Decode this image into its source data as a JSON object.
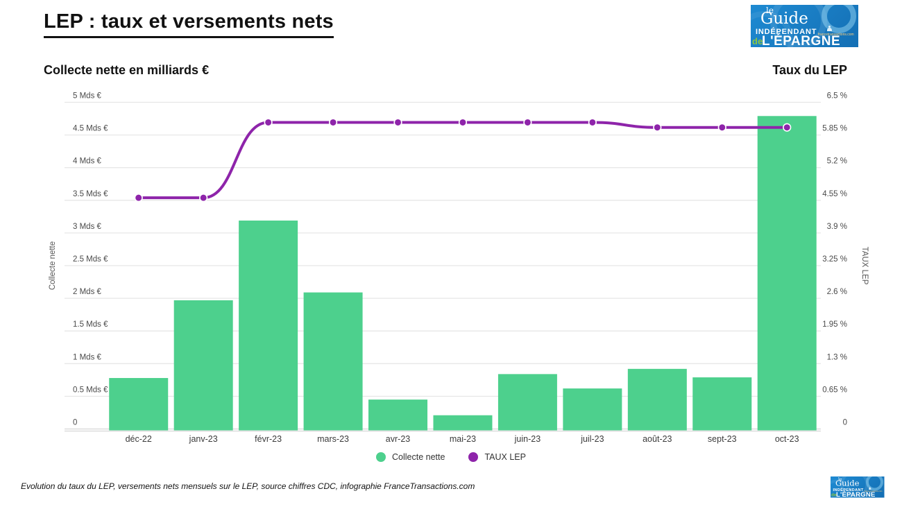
{
  "page": {
    "background": "#ffffff"
  },
  "header": {
    "title": "LEP : taux et versements nets",
    "left_subtitle": "Collecte nette en milliards €",
    "right_subtitle": "Taux du LEP"
  },
  "logo": {
    "le": "le",
    "guide": "Guide",
    "independant": "INDÉPENDANT",
    "site": "francetransactions.com",
    "de": "de",
    "epargne": "L'ÉPARGNE"
  },
  "chart_data": {
    "type": "bar",
    "title": "LEP : taux et versements nets",
    "categories": [
      "déc-22",
      "janv-23",
      "févr-23",
      "mars-23",
      "avr-23",
      "mai-23",
      "juin-23",
      "juil-23",
      "août-23",
      "sept-23",
      "oct-23"
    ],
    "series": [
      {
        "name": "Collecte nette",
        "type": "bar",
        "axis": "left",
        "color": "#4DD08D",
        "values": [
          0.78,
          1.97,
          3.19,
          2.09,
          0.45,
          0.21,
          0.84,
          0.62,
          0.92,
          0.79,
          4.79
        ]
      },
      {
        "name": "TAUX LEP",
        "type": "line",
        "axis": "right",
        "color": "#8E24AA",
        "values": [
          4.6,
          4.6,
          6.1,
          6.1,
          6.1,
          6.1,
          6.1,
          6.1,
          6.0,
          6.0,
          6.0
        ]
      }
    ],
    "left_axis": {
      "title": "Collecte nette",
      "unit": "Mds €",
      "min": 0,
      "max": 5,
      "ticks": [
        "0",
        "0.5 Mds €",
        "1 Mds €",
        "1.5 Mds €",
        "2 Mds €",
        "2.5 Mds €",
        "3 Mds €",
        "3.5 Mds €",
        "4 Mds €",
        "4.5 Mds €",
        "5 Mds €"
      ]
    },
    "right_axis": {
      "title": "TAUX LEP",
      "unit": "%",
      "min": 0,
      "max": 6.5,
      "ticks": [
        "0",
        "0.65 %",
        "1.3 %",
        "1.95 %",
        "2.6 %",
        "3.25 %",
        "3.9 %",
        "4.55 %",
        "5.2 %",
        "5.85 %",
        "6.5 %"
      ]
    },
    "grid": true,
    "legend_position": "bottom",
    "gridline_color": "#e7e7e7",
    "axisline_color": "#d6d6d6",
    "tick_color": "#4a4a4a",
    "category_color": "#3a3a3a"
  },
  "legend": [
    {
      "label": "Collecte nette",
      "color": "#4DD08D"
    },
    {
      "label": "TAUX LEP",
      "color": "#8E24AA"
    }
  ],
  "footer": {
    "caption": "Evolution du taux du LEP, versements nets mensuels sur le LEP, source chiffres CDC, infographie FranceTransactions.com"
  }
}
